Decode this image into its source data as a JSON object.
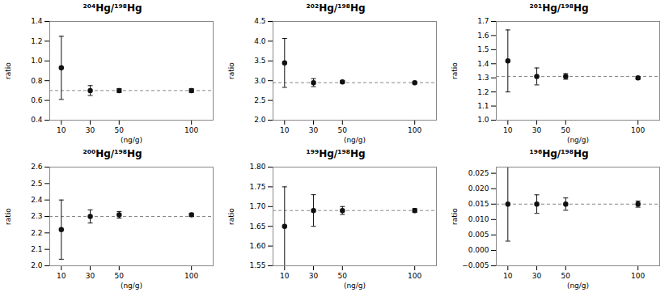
{
  "chart_data": [
    {
      "type": "scatter",
      "title": "²⁰⁴Hg/¹⁹⁸Hg",
      "x_label": "(ng/g)",
      "y_label": "ratio",
      "x": [
        10,
        30,
        50,
        100
      ],
      "values": [
        0.93,
        0.7,
        0.7,
        0.7
      ],
      "y_err": [
        0.32,
        0.05,
        0.02,
        0.02
      ],
      "color": "#111111",
      "marker": "o",
      "reference_line": {
        "y": 0.7,
        "color": "#888888",
        "line_style": "dashed"
      },
      "xlim": [
        2,
        115
      ],
      "xticks": [
        10,
        30,
        50,
        100
      ],
      "ylim": [
        0.4,
        1.4
      ],
      "yticks": [
        0.4,
        0.6,
        0.8,
        {
          "value": 1.0,
          "label": "1.0"
        },
        1.2,
        1.4
      ]
    },
    {
      "type": "scatter",
      "title": "²⁰²Hg/¹⁹⁸Hg",
      "x_label": "(ng/g)",
      "y_label": "ratio",
      "x": [
        10,
        30,
        50,
        100
      ],
      "values": [
        3.45,
        2.95,
        2.97,
        2.95
      ],
      "y_err": [
        0.62,
        0.1,
        0.03,
        0.02
      ],
      "color": "#111111",
      "marker": "o",
      "reference_line": {
        "y": 2.95,
        "color": "#888888",
        "line_style": "dashed"
      },
      "xlim": [
        2,
        115
      ],
      "xticks": [
        10,
        30,
        50,
        100
      ],
      "ylim": [
        2.0,
        4.5
      ],
      "yticks": [
        {
          "value": 2.0,
          "label": "2.0"
        },
        2.5,
        {
          "value": 3.0,
          "label": "3.0"
        },
        3.5,
        {
          "value": 4.0,
          "label": "4.0"
        },
        4.5
      ]
    },
    {
      "type": "scatter",
      "title": "²⁰¹Hg/¹⁹⁸Hg",
      "x_label": "(ng/g)",
      "y_label": "ratio",
      "x": [
        10,
        30,
        50,
        100
      ],
      "values": [
        1.42,
        1.31,
        1.31,
        1.3
      ],
      "y_err": [
        0.22,
        0.06,
        0.02,
        0.01
      ],
      "color": "#111111",
      "marker": "o",
      "reference_line": {
        "y": 1.31,
        "color": "#888888",
        "line_style": "dashed"
      },
      "xlim": [
        2,
        115
      ],
      "xticks": [
        10,
        30,
        50,
        100
      ],
      "ylim": [
        1.0,
        1.7
      ],
      "yticks": [
        {
          "value": 1.0,
          "label": "1.0"
        },
        1.1,
        1.2,
        1.3,
        1.4,
        1.5,
        1.6,
        1.7
      ]
    },
    {
      "type": "scatter",
      "title": "²⁰⁰Hg/¹⁹⁸Hg",
      "x_label": "(ng/g)",
      "y_label": "ratio",
      "x": [
        10,
        30,
        50,
        100
      ],
      "values": [
        2.22,
        2.3,
        2.31,
        2.31
      ],
      "y_err": [
        0.18,
        0.04,
        0.02,
        0.01
      ],
      "color": "#111111",
      "marker": "o",
      "reference_line": {
        "y": 2.3,
        "color": "#888888",
        "line_style": "dashed"
      },
      "xlim": [
        2,
        115
      ],
      "xticks": [
        10,
        30,
        50,
        100
      ],
      "ylim": [
        2.0,
        2.6
      ],
      "yticks": [
        {
          "value": 2.0,
          "label": "2.0"
        },
        2.1,
        2.2,
        2.3,
        2.4,
        2.5,
        2.6
      ]
    },
    {
      "type": "scatter",
      "title": "¹⁹⁹Hg/¹⁹⁸Hg",
      "x_label": "(ng/g)",
      "y_label": "ratio",
      "x": [
        10,
        30,
        50,
        100
      ],
      "values": [
        1.65,
        1.69,
        1.69,
        1.69
      ],
      "y_err": [
        0.1,
        0.04,
        0.01,
        0.005
      ],
      "color": "#111111",
      "marker": "o",
      "reference_line": {
        "y": 1.69,
        "color": "#888888",
        "line_style": "dashed"
      },
      "xlim": [
        2,
        115
      ],
      "xticks": [
        10,
        30,
        50,
        100
      ],
      "ylim": [
        1.55,
        1.8
      ],
      "yticks": [
        1.55,
        {
          "value": 1.6,
          "label": "1.60"
        },
        1.65,
        {
          "value": 1.7,
          "label": "1.70"
        },
        1.75,
        {
          "value": 1.8,
          "label": "1.80"
        }
      ]
    },
    {
      "type": "scatter",
      "title": "¹⁹⁶Hg/¹⁹⁸Hg",
      "x_label": "(ng/g)",
      "y_label": "ratio",
      "x": [
        10,
        30,
        50,
        100
      ],
      "values": [
        0.015,
        0.015,
        0.015,
        0.015
      ],
      "y_err": [
        0.012,
        0.003,
        0.002,
        0.001
      ],
      "color": "#111111",
      "marker": "o",
      "reference_line": {
        "y": 0.015,
        "color": "#888888",
        "line_style": "dashed"
      },
      "xlim": [
        2,
        115
      ],
      "xticks": [
        10,
        30,
        50,
        100
      ],
      "ylim": [
        -0.005,
        0.027
      ],
      "yticks": [
        {
          "value": -0.005,
          "label": "−0.005"
        },
        {
          "value": 0,
          "label": "0.000"
        },
        0.005,
        {
          "value": 0.01,
          "label": "0.010"
        },
        0.015,
        {
          "value": 0.02,
          "label": "0.020"
        },
        0.025
      ]
    }
  ]
}
